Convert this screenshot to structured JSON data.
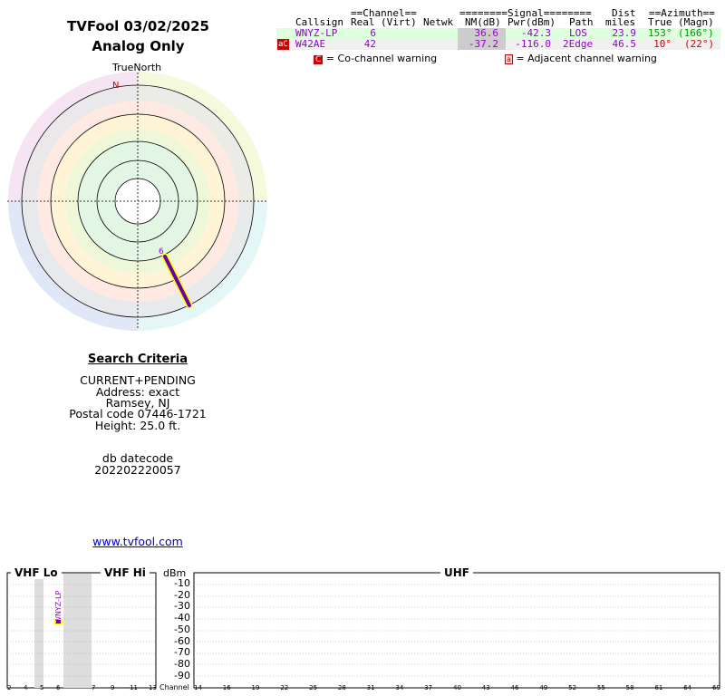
{
  "header": {
    "title": "TVFool 03/02/2025",
    "subtitle": "Analog Only"
  },
  "polar": {
    "true_north_label": "TrueNorth",
    "north_label": "N",
    "station_label": "6"
  },
  "table": {
    "group_headers": {
      "channel": "==Channel==",
      "signal": "========Signal========",
      "dist": "Dist",
      "azimuth": "==Azimuth=="
    },
    "columns": [
      "Callsign",
      "Real",
      "(Virt)",
      "Netwk",
      "NM(dB)",
      "Pwr(dBm)",
      "Path",
      "miles",
      "True",
      "(Magn)"
    ],
    "rows": [
      {
        "callsign": "WNYZ-LP",
        "real": "6",
        "virt": "",
        "netwk": "",
        "nm": "36.6",
        "pwr": "-42.3",
        "path": "LOS",
        "miles": "23.9",
        "true": "153°",
        "magn": "(166°)",
        "warning": ""
      },
      {
        "callsign": "W42AE",
        "real": "42",
        "virt": "",
        "netwk": "",
        "nm": "-37.2",
        "pwr": "-116.0",
        "path": "2Edge",
        "miles": "46.5",
        "true": "10°",
        "magn": "(22°)",
        "warning": "aC"
      }
    ],
    "legend": {
      "cochannel_glyph": "C",
      "cochannel_text": "= Co-channel warning",
      "adjacent_glyph": "a",
      "adjacent_text": "= Adjacent channel warning"
    },
    "colors": {
      "callsign": "#9900cc",
      "true_azimuth_row1": "#009900",
      "true_azimuth_row2": "#cc0000",
      "row1_bg": "#ddffdd",
      "nm_bg": "#cccccc",
      "warning_red": "#cc0000"
    }
  },
  "search": {
    "heading": "Search Criteria",
    "lines": [
      "CURRENT+PENDING",
      "Address: exact",
      "Ramsey, NJ",
      "Postal code 07446-1721",
      "Height: 25.0 ft."
    ],
    "db_label": "db datecode",
    "db_code": "202202220057",
    "link": "www.tvfool.com"
  },
  "spectrum": {
    "vhf_lo": "VHF Lo",
    "vhf_hi": "VHF Hi",
    "uhf": "UHF",
    "dbm_label": "dBm",
    "dbm_ticks": [
      "-10",
      "-20",
      "-30",
      "-40",
      "-50",
      "-60",
      "-70",
      "-80",
      "-90"
    ],
    "channel_label": "Channel",
    "vhf_lo_channels": [
      "2",
      "4",
      "5",
      "6"
    ],
    "vhf_hi_channels": [
      "7",
      "9",
      "11",
      "13"
    ],
    "uhf_channels": [
      "14",
      "16",
      "19",
      "22",
      "25",
      "28",
      "31",
      "34",
      "37",
      "40",
      "43",
      "46",
      "49",
      "52",
      "55",
      "58",
      "61",
      "64",
      "69"
    ],
    "station_label": "WNYZ-LP"
  }
}
